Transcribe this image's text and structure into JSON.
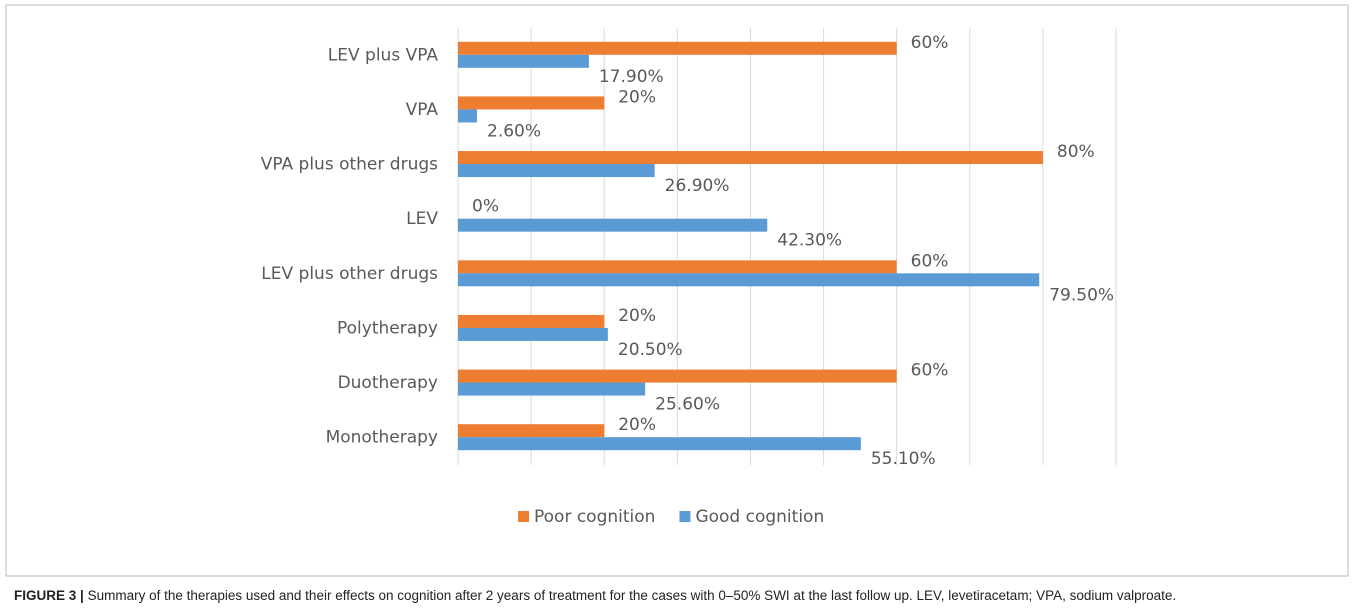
{
  "chart_data": {
    "type": "bar",
    "orientation": "horizontal",
    "categories": [
      "LEV plus VPA",
      "VPA",
      "VPA plus other drugs",
      "LEV",
      "LEV plus other drugs",
      "Polytherapy",
      "Duotherapy",
      "Monotherapy"
    ],
    "series": [
      {
        "name": "Poor cognition",
        "color": "#ed7d31",
        "values": [
          60,
          20,
          80,
          0,
          60,
          20,
          60,
          20
        ],
        "value_labels": [
          "60%",
          "20%",
          "80%",
          "0%",
          "60%",
          "20%",
          "60%",
          "20%"
        ]
      },
      {
        "name": "Good cognition",
        "color": "#5b9bd5",
        "values": [
          17.9,
          2.6,
          26.9,
          42.3,
          79.5,
          20.5,
          25.6,
          55.1
        ],
        "value_labels": [
          "17.90%",
          "2.60%",
          "26.90%",
          "42.30%",
          "79.50%",
          "20.50%",
          "25.60%",
          "55.10%"
        ]
      }
    ],
    "xlim": [
      0,
      90
    ],
    "xticks": [
      0,
      10,
      20,
      30,
      40,
      50,
      60,
      70,
      80,
      90
    ],
    "grid": true,
    "legend": "bottom"
  },
  "caption": {
    "label": "FIGURE 3 |",
    "text": "Summary of the therapies used and their effects on cognition after 2 years of treatment for the cases with 0–50% SWI at the last follow up. LEV, levetiracetam; VPA, sodium valproate."
  }
}
